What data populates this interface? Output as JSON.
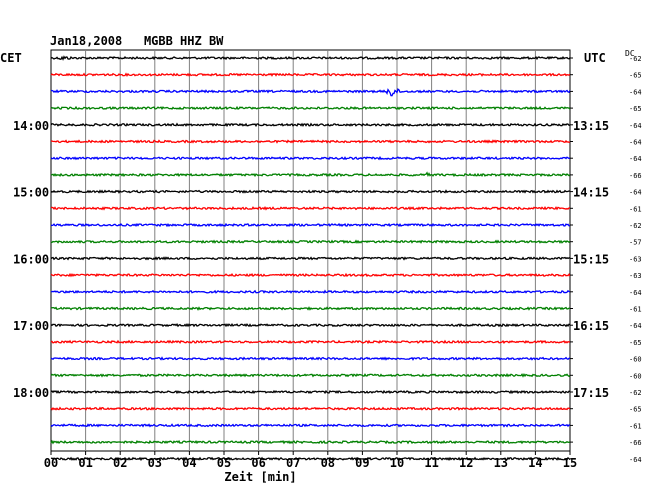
{
  "header": {
    "date": "Jan18,2008",
    "station": "MGBB HHZ BW",
    "left_timezone": "CET",
    "right_timezone": "UTC",
    "dc_label": "DC"
  },
  "chart_data": {
    "type": "line",
    "title": "Jan18,2008   MGBB HHZ BW",
    "xlabel": "Zeit [min]",
    "x_ticks": [
      "00",
      "01",
      "02",
      "03",
      "04",
      "05",
      "06",
      "07",
      "08",
      "09",
      "10",
      "11",
      "12",
      "13",
      "14",
      "15"
    ],
    "xlim": [
      0,
      15
    ],
    "grid": true,
    "trace_colors": [
      "#000000",
      "#ff0000",
      "#0000ff",
      "#008000"
    ],
    "left_time_labels": [
      "14:00",
      "15:00",
      "16:00",
      "17:00",
      "18:00"
    ],
    "right_time_labels": [
      "13:15",
      "14:15",
      "15:15",
      "16:15",
      "17:15"
    ],
    "dc_offsets": [
      "-62",
      "-65",
      "-64",
      "-65",
      "-64",
      "-64",
      "-64",
      "-66",
      "-64",
      "-61",
      "-62",
      "-57",
      "-63",
      "-63",
      "-64",
      "-61",
      "-64",
      "-65",
      "-60",
      "-60",
      "-62",
      "-65",
      "-61",
      "-66",
      "-64"
    ],
    "events": [
      {
        "trace": 0,
        "minute_start": 0.2,
        "minute_end": 2.0,
        "amplitude": "small"
      },
      {
        "trace": 2,
        "minute_start": 9.7,
        "minute_end": 10.6,
        "amplitude": "large"
      },
      {
        "trace": 7,
        "minute_start": 10.8,
        "minute_end": 11.6,
        "amplitude": "small"
      }
    ]
  }
}
